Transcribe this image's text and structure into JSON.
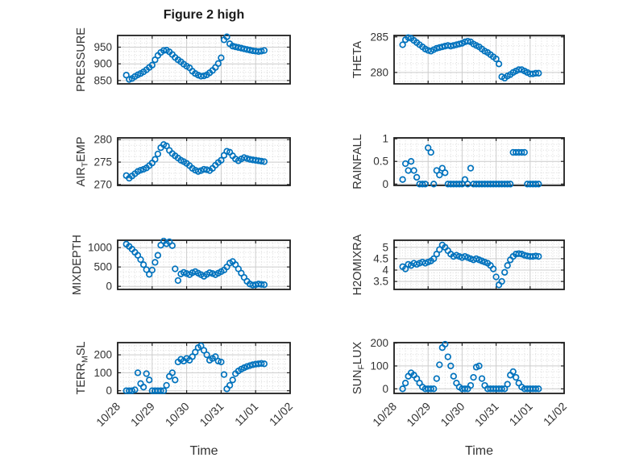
{
  "figure": {
    "colors": {
      "marker": "#0072BD",
      "major_grid": "#cccccc",
      "minor_grid": "#d9d9d9",
      "frame": "#1f1f1f",
      "text": "#333333",
      "background": "#ffffff"
    }
  },
  "chart_data": {
    "type": "scatter",
    "title": "Figure 2 high",
    "xlabel": "Time",
    "marker": "open-circle",
    "grid": {
      "major": true,
      "minor_dotted": true,
      "box": true
    },
    "x_ticks": [
      "10/28",
      "10/29",
      "10/30",
      "10/31",
      "11/01",
      "11/02"
    ],
    "xlim_days": [
      0,
      5
    ],
    "x_days": [
      0.25,
      0.333,
      0.417,
      0.5,
      0.583,
      0.667,
      0.75,
      0.833,
      0.917,
      1,
      1.083,
      1.167,
      1.25,
      1.333,
      1.417,
      1.5,
      1.583,
      1.667,
      1.75,
      1.833,
      1.917,
      2,
      2.083,
      2.167,
      2.25,
      2.333,
      2.417,
      2.5,
      2.583,
      2.667,
      2.75,
      2.833,
      2.917,
      3,
      3.083,
      3.167,
      3.25,
      3.333,
      3.417,
      3.5,
      3.583,
      3.667,
      3.75,
      3.833,
      3.917,
      4,
      4.083,
      4.167,
      4.25
    ],
    "subplots": [
      {
        "name": "PRESSURE",
        "label_parts": [
          {
            "t": "PRESSURE"
          }
        ],
        "yticks": [
          850,
          900,
          950
        ],
        "ylim": [
          840,
          985
        ],
        "values": [
          866,
          853,
          856,
          862,
          867,
          871,
          876,
          882,
          889,
          896,
          912,
          925,
          934,
          940,
          941,
          936,
          928,
          919,
          912,
          906,
          899,
          893,
          888,
          878,
          871,
          866,
          863,
          864,
          867,
          873,
          880,
          889,
          901,
          918,
          972,
          981,
          960,
          953,
          951,
          949,
          947,
          945,
          943,
          941,
          939,
          938,
          937,
          938,
          940
        ]
      },
      {
        "name": "THETA",
        "label_parts": [
          {
            "t": "THETA"
          }
        ],
        "yticks": [
          280,
          285
        ],
        "ylim": [
          278.4,
          285.2
        ],
        "values": [
          283.9,
          284.6,
          284.9,
          284.8,
          284.5,
          284.2,
          283.9,
          283.6,
          283.3,
          283.1,
          283.0,
          283.2,
          283.4,
          283.5,
          283.6,
          283.7,
          283.8,
          283.7,
          283.8,
          283.9,
          284.0,
          284.1,
          284.3,
          284.4,
          284.3,
          284.0,
          283.8,
          283.6,
          283.3,
          283.0,
          282.8,
          282.5,
          282.2,
          281.9,
          281.2,
          279.4,
          279.2,
          279.5,
          279.7,
          280.0,
          280.2,
          280.4,
          280.4,
          280.2,
          280.0,
          279.8,
          279.8,
          279.9,
          279.9
        ]
      },
      {
        "name": "AIR_TEMP",
        "label_parts": [
          {
            "t": "AIR"
          },
          {
            "t": "T",
            "sub": true
          },
          {
            "t": "EMP"
          }
        ],
        "yticks": [
          270,
          275,
          280
        ],
        "ylim": [
          269.8,
          280.4
        ],
        "values": [
          272.0,
          271.4,
          271.9,
          272.4,
          272.9,
          273.2,
          273.4,
          273.7,
          274.2,
          274.8,
          275.6,
          276.8,
          278.2,
          278.9,
          278.6,
          277.6,
          276.9,
          276.4,
          275.9,
          275.4,
          275.1,
          274.7,
          274.2,
          273.6,
          273.2,
          272.9,
          273.1,
          273.4,
          273.3,
          273.1,
          273.6,
          274.3,
          274.9,
          275.4,
          276.5,
          277.4,
          277.2,
          276.4,
          275.7,
          275.3,
          275.7,
          276.0,
          275.8,
          275.6,
          275.5,
          275.4,
          275.3,
          275.2,
          275.1
        ]
      },
      {
        "name": "RAINFALL",
        "label_parts": [
          {
            "t": "RAINFALL"
          }
        ],
        "yticks": [
          0,
          0.5,
          1
        ],
        "ylim": [
          -0.03,
          1.02
        ],
        "values": [
          0.1,
          0.45,
          0.3,
          0.5,
          0.3,
          0.15,
          0,
          0,
          0,
          0.8,
          0.7,
          0,
          0.3,
          0.2,
          0.35,
          0.25,
          0,
          0,
          0,
          0,
          0,
          0,
          0.1,
          0,
          0.35,
          0,
          0,
          0,
          0,
          0,
          0,
          0,
          0,
          0,
          0,
          0,
          0,
          0,
          0,
          0.7,
          0.7,
          0.7,
          0.7,
          0.7,
          0,
          0,
          0,
          0,
          0
        ]
      },
      {
        "name": "MIXDEPTH",
        "label_parts": [
          {
            "t": "MIXDEPTH"
          }
        ],
        "yticks": [
          0,
          500,
          1000
        ],
        "ylim": [
          -80,
          1190
        ],
        "values": [
          1090,
          1030,
          960,
          880,
          800,
          690,
          560,
          430,
          310,
          420,
          620,
          800,
          1060,
          1170,
          1100,
          1150,
          1050,
          450,
          150,
          320,
          360,
          330,
          300,
          350,
          380,
          340,
          300,
          260,
          310,
          350,
          330,
          300,
          340,
          380,
          420,
          500,
          600,
          640,
          560,
          450,
          340,
          230,
          130,
          60,
          30,
          40,
          60,
          50,
          40
        ]
      },
      {
        "name": "H2OMIXRA",
        "label_parts": [
          {
            "t": "H2OMIXRA"
          }
        ],
        "yticks": [
          3.5,
          4,
          4.5,
          5
        ],
        "ylim": [
          3.15,
          5.31
        ],
        "values": [
          4.15,
          4.05,
          4.25,
          4.2,
          4.3,
          4.25,
          4.3,
          4.35,
          4.3,
          4.35,
          4.4,
          4.5,
          4.7,
          4.9,
          5.1,
          5.0,
          4.85,
          4.7,
          4.6,
          4.65,
          4.6,
          4.55,
          4.6,
          4.55,
          4.5,
          4.45,
          4.5,
          4.45,
          4.4,
          4.35,
          4.3,
          4.2,
          4.05,
          3.7,
          3.35,
          3.5,
          3.9,
          4.2,
          4.45,
          4.6,
          4.7,
          4.72,
          4.7,
          4.65,
          4.62,
          4.6,
          4.6,
          4.62,
          4.6
        ]
      },
      {
        "name": "TERR_MSL",
        "label_parts": [
          {
            "t": "TERR"
          },
          {
            "t": "M",
            "sub": true
          },
          {
            "t": "SL"
          }
        ],
        "yticks": [
          0,
          100,
          200
        ],
        "ylim": [
          -15,
          268
        ],
        "values": [
          0,
          0,
          0,
          5,
          100,
          40,
          20,
          95,
          60,
          0,
          0,
          0,
          0,
          0,
          30,
          80,
          100,
          60,
          160,
          175,
          165,
          180,
          170,
          190,
          215,
          240,
          250,
          225,
          200,
          170,
          180,
          190,
          165,
          160,
          90,
          10,
          30,
          60,
          95,
          110,
          120,
          128,
          135,
          140,
          145,
          148,
          150,
          152,
          150
        ]
      },
      {
        "name": "SUN_FLUX",
        "label_parts": [
          {
            "t": "SUN"
          },
          {
            "t": "F",
            "sub": true
          },
          {
            "t": "LUX"
          }
        ],
        "yticks": [
          0,
          100,
          200
        ],
        "ylim": [
          -20,
          202
        ],
        "values": [
          0,
          25,
          55,
          70,
          60,
          45,
          25,
          8,
          0,
          0,
          0,
          0,
          45,
          105,
          180,
          195,
          140,
          100,
          55,
          25,
          8,
          0,
          0,
          0,
          15,
          50,
          95,
          100,
          45,
          15,
          0,
          0,
          0,
          0,
          0,
          0,
          0,
          20,
          60,
          75,
          50,
          25,
          8,
          0,
          0,
          0,
          0,
          0,
          0
        ]
      }
    ]
  }
}
